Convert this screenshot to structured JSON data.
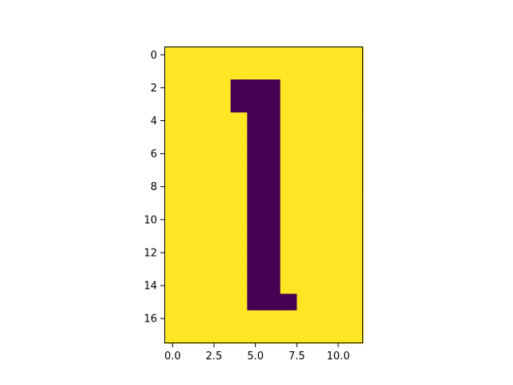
{
  "chart_data": {
    "type": "heatmap",
    "title": "",
    "xlabel": "",
    "ylabel": "",
    "rows": 18,
    "cols": 12,
    "xlim": [
      -0.5,
      11.5
    ],
    "ylim": [
      17.5,
      -0.5
    ],
    "x_ticks": [
      0.0,
      2.5,
      5.0,
      7.5,
      10.0
    ],
    "x_tick_labels": [
      "0.0",
      "2.5",
      "5.0",
      "7.5",
      "10.0"
    ],
    "y_ticks": [
      0,
      2,
      4,
      6,
      8,
      10,
      12,
      14,
      16
    ],
    "y_tick_labels": [
      "0",
      "2",
      "4",
      "6",
      "8",
      "10",
      "12",
      "14",
      "16"
    ],
    "grid": false,
    "colormap": "viridis",
    "colors": {
      "low": "#440154",
      "high": "#fde725"
    },
    "values": [
      [
        1,
        1,
        1,
        1,
        1,
        1,
        1,
        1,
        1,
        1,
        1,
        1
      ],
      [
        1,
        1,
        1,
        1,
        1,
        1,
        1,
        1,
        1,
        1,
        1,
        1
      ],
      [
        1,
        1,
        1,
        1,
        0,
        0,
        0,
        1,
        1,
        1,
        1,
        1
      ],
      [
        1,
        1,
        1,
        1,
        0,
        0,
        0,
        1,
        1,
        1,
        1,
        1
      ],
      [
        1,
        1,
        1,
        1,
        1,
        0,
        0,
        1,
        1,
        1,
        1,
        1
      ],
      [
        1,
        1,
        1,
        1,
        1,
        0,
        0,
        1,
        1,
        1,
        1,
        1
      ],
      [
        1,
        1,
        1,
        1,
        1,
        0,
        0,
        1,
        1,
        1,
        1,
        1
      ],
      [
        1,
        1,
        1,
        1,
        1,
        0,
        0,
        1,
        1,
        1,
        1,
        1
      ],
      [
        1,
        1,
        1,
        1,
        1,
        0,
        0,
        1,
        1,
        1,
        1,
        1
      ],
      [
        1,
        1,
        1,
        1,
        1,
        0,
        0,
        1,
        1,
        1,
        1,
        1
      ],
      [
        1,
        1,
        1,
        1,
        1,
        0,
        0,
        1,
        1,
        1,
        1,
        1
      ],
      [
        1,
        1,
        1,
        1,
        1,
        0,
        0,
        1,
        1,
        1,
        1,
        1
      ],
      [
        1,
        1,
        1,
        1,
        1,
        0,
        0,
        1,
        1,
        1,
        1,
        1
      ],
      [
        1,
        1,
        1,
        1,
        1,
        0,
        0,
        1,
        1,
        1,
        1,
        1
      ],
      [
        1,
        1,
        1,
        1,
        1,
        0,
        0,
        1,
        1,
        1,
        1,
        1
      ],
      [
        1,
        1,
        1,
        1,
        1,
        0,
        0,
        0,
        1,
        1,
        1,
        1
      ],
      [
        1,
        1,
        1,
        1,
        1,
        1,
        1,
        1,
        1,
        1,
        1,
        1
      ],
      [
        1,
        1,
        1,
        1,
        1,
        1,
        1,
        1,
        1,
        1,
        1,
        1
      ]
    ]
  }
}
